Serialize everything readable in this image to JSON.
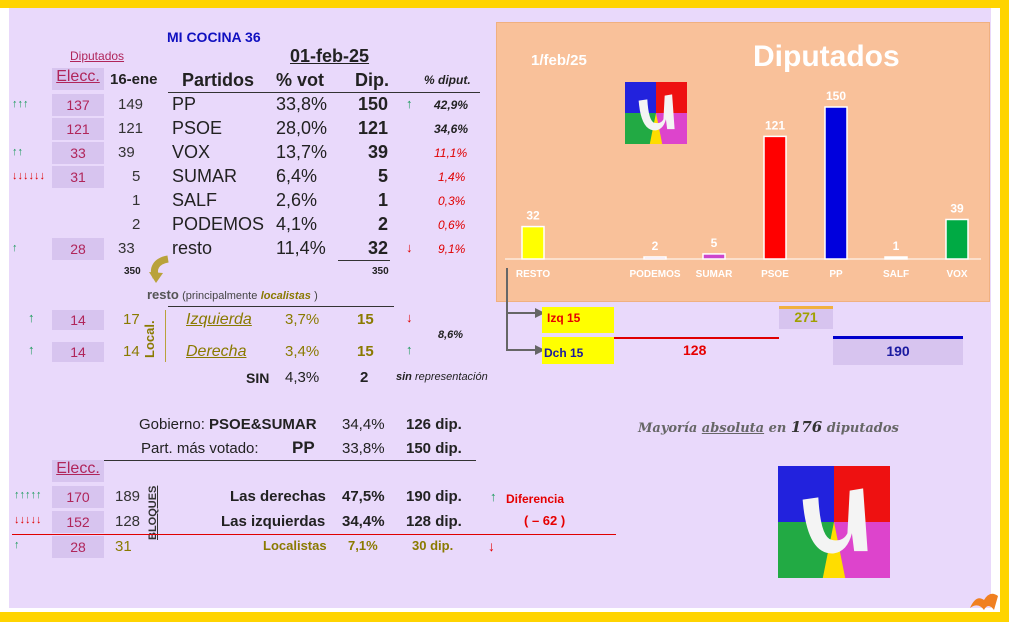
{
  "title": "MI COCINA 36",
  "date": "01-feb-25",
  "subtitle_diputados": "Diputados",
  "headers": {
    "elecc": "Elecc.",
    "prev": "16-ene",
    "partidos": "Partidos",
    "pvot": "% vot",
    "dip": "Dip.",
    "pdip": "% diput."
  },
  "rows": [
    {
      "arrow": "↑↑↑",
      "elecc": "137",
      "prev": "149",
      "party": "PP",
      "pvot": "33,8%",
      "dip": "150",
      "arrow2": "↑",
      "pdip": "42,9%"
    },
    {
      "arrow": "",
      "elecc": "121",
      "prev": "121",
      "party": "PSOE",
      "pvot": "28,0%",
      "dip": "121",
      "arrow2": "",
      "pdip": "34,6%"
    },
    {
      "arrow": "↑↑",
      "elecc": "33",
      "prev": "39",
      "party": "VOX",
      "pvot": "13,7%",
      "dip": "39",
      "arrow2": "",
      "pdip": "11,1%"
    },
    {
      "arrow": "↓↓↓↓↓↓",
      "elecc": "31",
      "prev": "5",
      "party": "SUMAR",
      "pvot": "6,4%",
      "dip": "5",
      "arrow2": "",
      "pdip": "1,4%"
    },
    {
      "arrow": "",
      "elecc": "",
      "prev": "1",
      "party": "SALF",
      "pvot": "2,6%",
      "dip": "1",
      "arrow2": "",
      "pdip": "0,3%"
    },
    {
      "arrow": "",
      "elecc": "",
      "prev": "2",
      "party": "PODEMOS",
      "pvot": "4,1%",
      "dip": "2",
      "arrow2": "",
      "pdip": "0,6%"
    },
    {
      "arrow": "↑",
      "elecc": "28",
      "prev": "33",
      "party": "resto",
      "pvot": "11,4%",
      "dip": "32",
      "arrow2": "↓",
      "pdip": "9,1%"
    }
  ],
  "totals": {
    "prev": "350",
    "dip": "350"
  },
  "resto_note": {
    "resto": "resto",
    "pre": "(principalmente",
    "loc": "localistas",
    "post": ")"
  },
  "local": {
    "label": "Local.",
    "rows": [
      {
        "arrow": "↑",
        "elecc": "14",
        "prev": "17",
        "name": "Izquierda",
        "pvot": "3,7%",
        "dip": "15",
        "arrow2": "↓"
      },
      {
        "arrow": "↑",
        "elecc": "14",
        "prev": "14",
        "name": "Derecha",
        "pvot": "3,4%",
        "dip": "15",
        "arrow2": "↑"
      }
    ],
    "pdip": "8,6%"
  },
  "sin": {
    "label": "SIN",
    "pvot": "4,3%",
    "dip": "2",
    "note_a": "sin",
    "note_b": "representación"
  },
  "gobierno": {
    "label": "Gobierno:",
    "name": "PSOE&SUMAR",
    "pvot": "34,4%",
    "dip": "126 dip."
  },
  "mas_votado": {
    "label": "Part. más votado:",
    "name": "PP",
    "pvot": "33,8%",
    "dip": "150 dip."
  },
  "bloques": {
    "elecc": "Elecc.",
    "label": "BLOQUES",
    "rows": [
      {
        "arrow": "↑↑↑↑↑",
        "elecc": "170",
        "prev": "189",
        "name": "Las derechas",
        "pvot": "47,5%",
        "dip": "190 dip."
      },
      {
        "arrow": "↓↓↓↓↓",
        "elecc": "152",
        "prev": "128",
        "name": "Las izquierdas",
        "pvot": "34,4%",
        "dip": "128 dip."
      },
      {
        "arrow": "↑",
        "elecc": "28",
        "prev": "31",
        "name": "Localistas",
        "pvot": "7,1%",
        "dip": "30 dip."
      }
    ],
    "diff_arrow": "↑",
    "diff_label": "Diferencia",
    "diff_value": "( –  62 )",
    "local_arrow": "↓"
  },
  "mayoria": {
    "a": "Mayoría",
    "b": "absoluta",
    "c": "en",
    "d": "176",
    "e": "diputados"
  },
  "side": {
    "izq": "Izq 15",
    "dch": "Dch 15",
    "n271": "271",
    "n128": "128",
    "n190": "190"
  },
  "colors": {
    "PP": "#0000dd",
    "PSOE": "#ff0000",
    "VOX": "#00aa44",
    "SUMAR": "#cc44cc",
    "PODEMOS": "#d0a0d0",
    "RESTO": "#ffff00",
    "SALF": "#ffffff"
  },
  "chart_data": {
    "type": "bar",
    "title": "Diputados",
    "subtitle": "1/feb/25",
    "categories": [
      "RESTO",
      "PODEMOS",
      "SUMAR",
      "PSOE",
      "PP",
      "SALF",
      "VOX"
    ],
    "values": [
      32,
      2,
      5,
      121,
      150,
      1,
      39
    ],
    "ylim": [
      0,
      150
    ]
  }
}
